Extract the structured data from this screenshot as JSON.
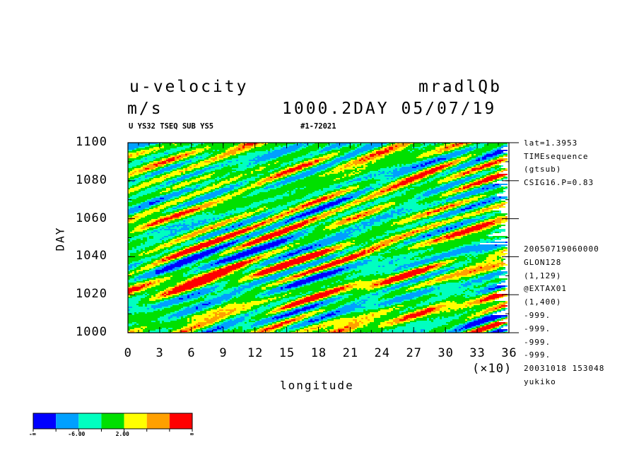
{
  "header": {
    "variable": "u-velocity",
    "units": "m/s",
    "experiment": "mradlQb",
    "time_label": "1000.2DAY 05/07/19",
    "subinfo_left": "U YS32 TSEQ SUB YS5",
    "subinfo_right": "#1-72021"
  },
  "side_info_top": [
    "lat=1.3953",
    "TIMEsequence",
    "(gtsub)",
    "CSIG16.P=0.83"
  ],
  "side_info_bottom": [
    "20050719060000",
    "GLON128",
    "(1,129)",
    "@EXTAX01",
    "(1,400)",
    "-999.",
    "-999.",
    "-999.",
    "-999.",
    "20031018 153048",
    "yukiko"
  ],
  "chart_data": {
    "type": "heatmap",
    "title": "u-velocity",
    "xlabel": "longitude",
    "x_multiplier": "(×10)",
    "ylabel": "DAY",
    "xlim": [
      0,
      36
    ],
    "ylim": [
      1000,
      1100
    ],
    "x_ticks": [
      "0",
      "3",
      "6",
      "9",
      "12",
      "15",
      "18",
      "21",
      "24",
      "27",
      "30",
      "33",
      "36"
    ],
    "y_ticks": [
      "1000",
      "1020",
      "1040",
      "1060",
      "1080",
      "1100"
    ],
    "colorbar": {
      "colors": [
        "#0000ff",
        "#00a0ff",
        "#00ffc0",
        "#00e000",
        "#ffff00",
        "#ffa000",
        "#ff0000"
      ],
      "labels": [
        "-∞",
        "-6.00",
        "2.00",
        "∞"
      ]
    },
    "field_note": "Shaded u-velocity field, longitude vs day; dominant green/cyan with red patches, tilted streaks"
  }
}
